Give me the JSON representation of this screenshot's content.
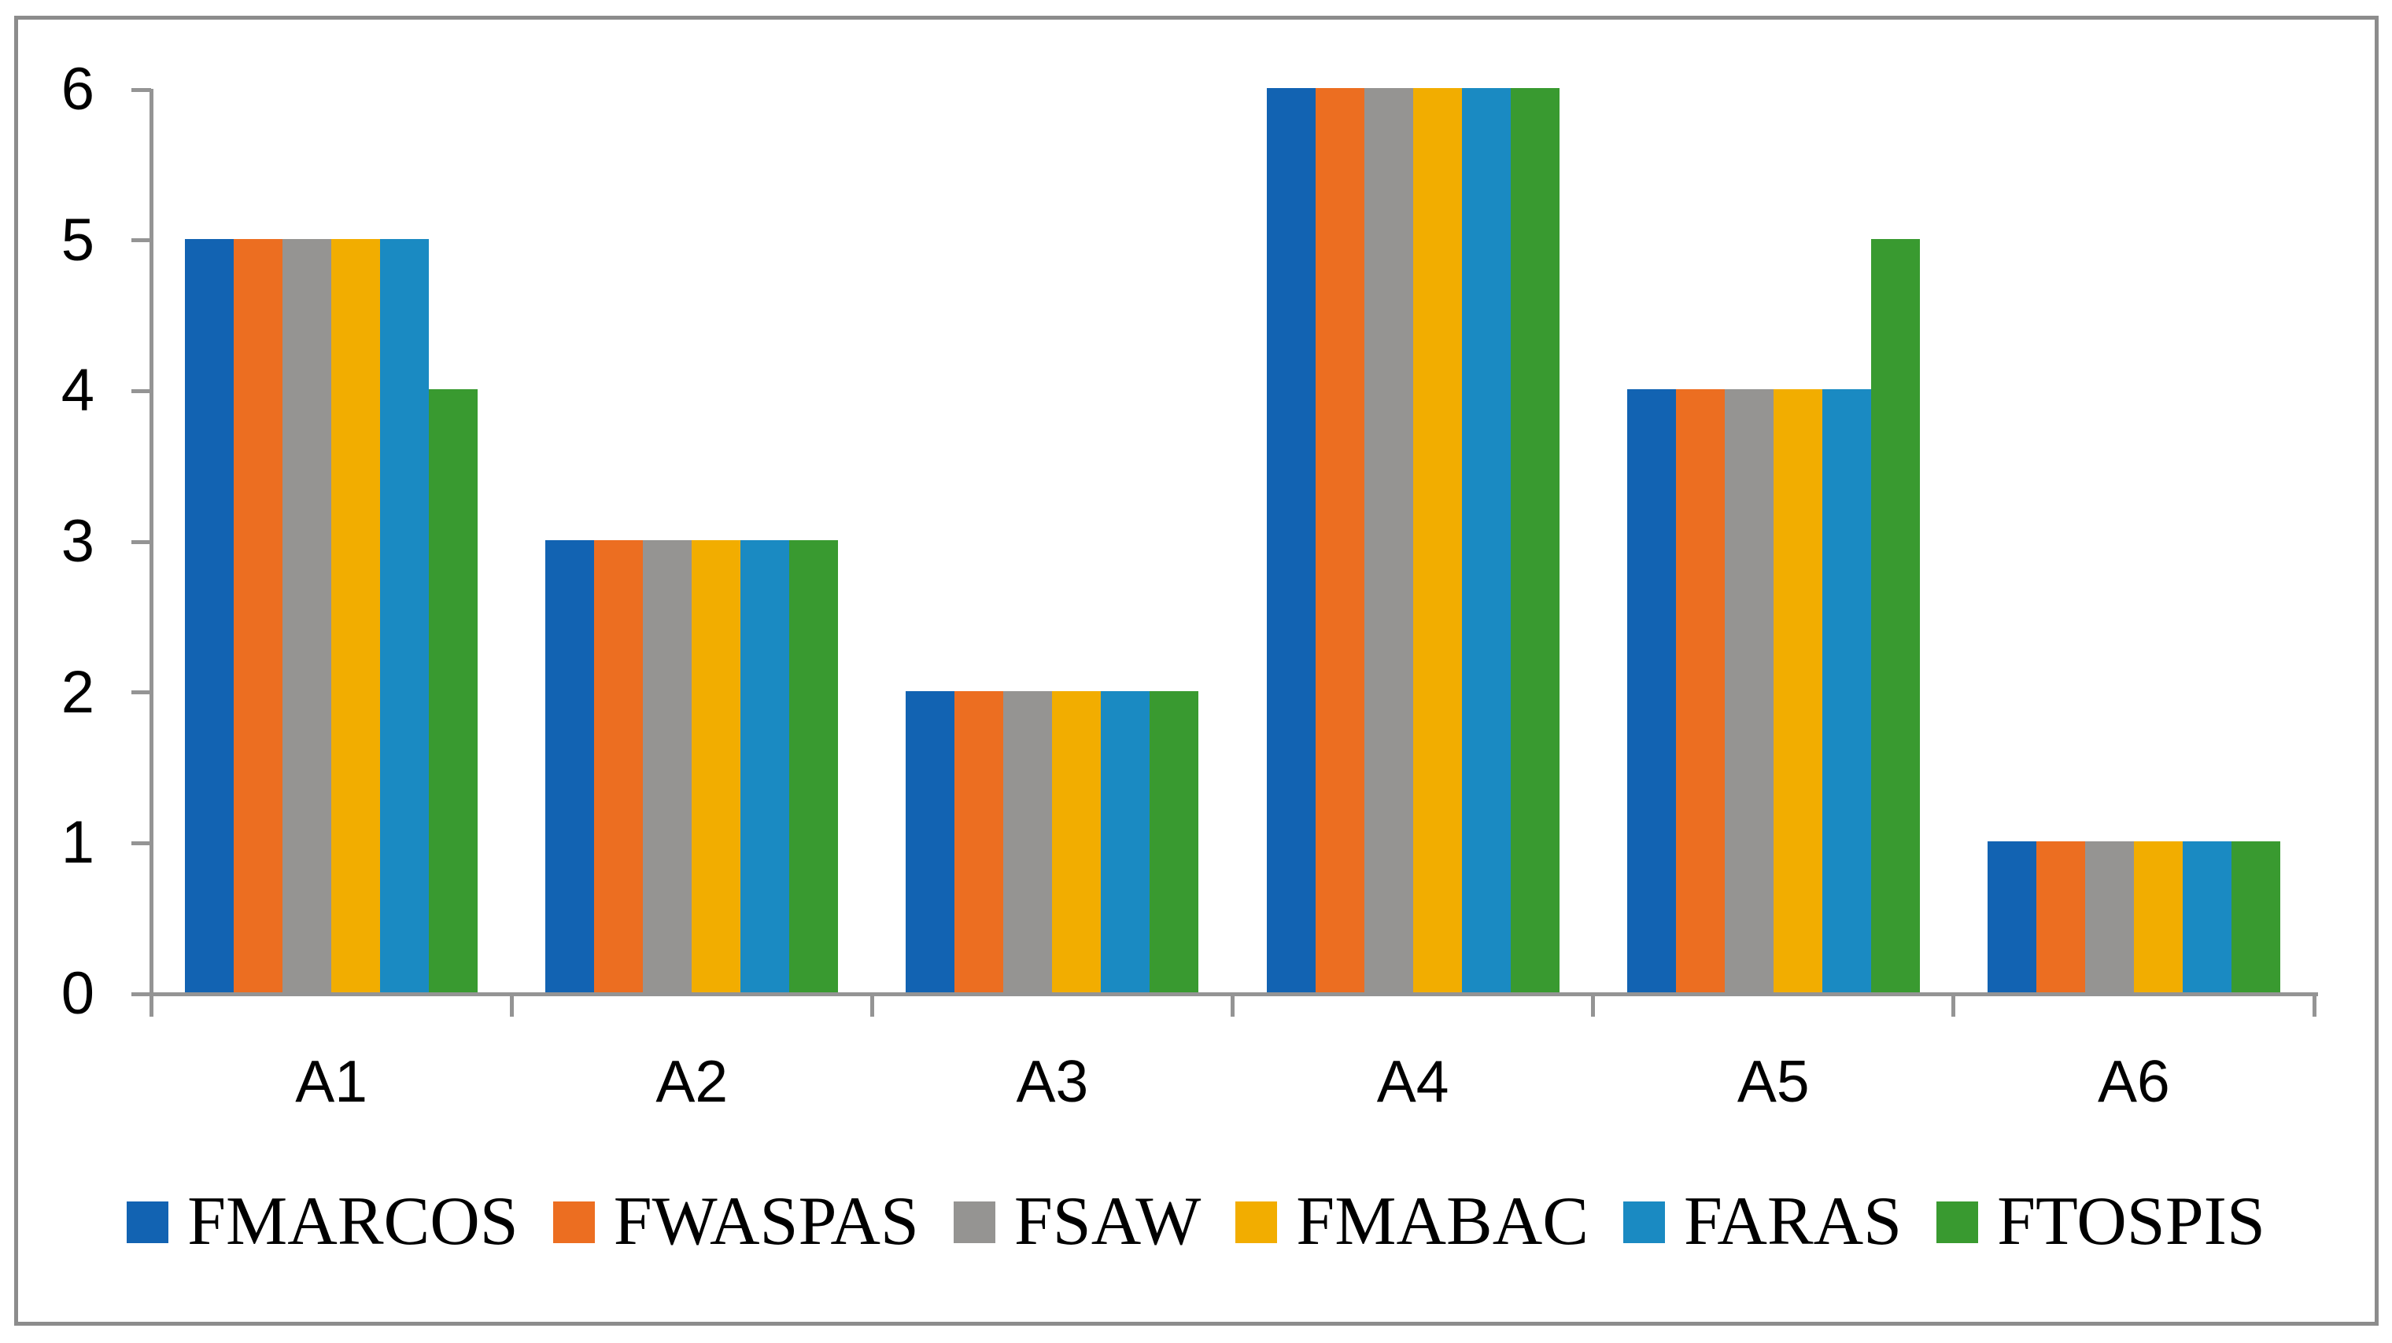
{
  "chart_data": {
    "type": "bar",
    "title": "",
    "xlabel": "",
    "ylabel": "",
    "categories": [
      "A1",
      "A2",
      "A3",
      "A4",
      "A5",
      "A6"
    ],
    "series": [
      {
        "name": "FMARCOS",
        "color": "#1263B2",
        "values": [
          5,
          3,
          2,
          6,
          4,
          1
        ]
      },
      {
        "name": "FWASPAS",
        "color": "#EC6E21",
        "values": [
          5,
          3,
          2,
          6,
          4,
          1
        ]
      },
      {
        "name": "FSAW",
        "color": "#959492",
        "values": [
          5,
          3,
          2,
          6,
          4,
          1
        ]
      },
      {
        "name": "FMABAC",
        "color": "#F2AD00",
        "values": [
          5,
          3,
          2,
          6,
          4,
          1
        ]
      },
      {
        "name": "FARAS",
        "color": "#1A8AC2",
        "values": [
          5,
          3,
          2,
          6,
          4,
          1
        ]
      },
      {
        "name": "FTOSPIS",
        "color": "#399A30",
        "values": [
          4,
          3,
          2,
          6,
          5,
          1
        ]
      }
    ],
    "ylim": [
      0,
      6
    ],
    "yticks": [
      0,
      1,
      2,
      3,
      4,
      5,
      6
    ],
    "grid": false,
    "legend_position": "bottom",
    "axis_color": "#949494",
    "frame_border_color": "#8C8C8C",
    "text_color": "#000000",
    "background_color": "#FFFFFF"
  }
}
